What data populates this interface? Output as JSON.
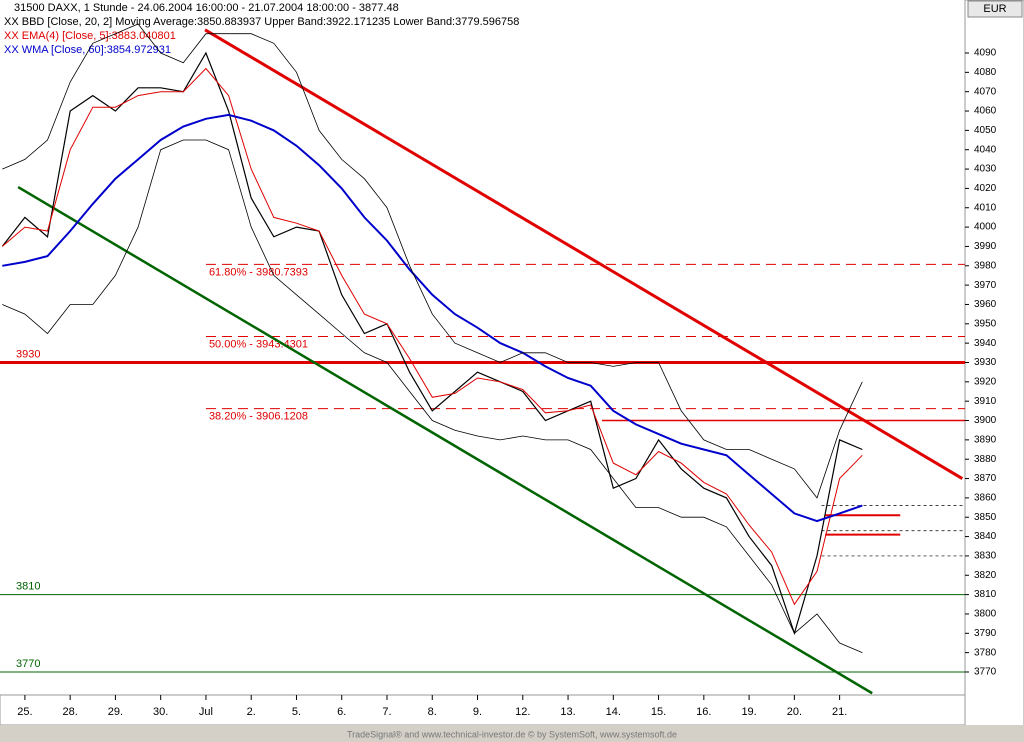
{
  "chart_data": {
    "type": "line",
    "title": "31500  DAXX, 1 Stunde - 24.06.2004 16:00:00 - 21.07.2004 18:00:00 - 3877.48",
    "legend_lines": [
      "XX BBD [Close, 20, 2] Moving Average:3850.883937 Upper Band:3922.171235 Lower Band:3779.596758",
      "XX EMA(4) [Close, 5]:3883.040801",
      "XX WMA [Close, 60]:3854.972931"
    ],
    "currency": "EUR",
    "footer": "TradeSignal® and www.technical-investor.de © by  SystemSoft, www.systemsoft.de",
    "xlim": [
      -0.55,
      20.77
    ],
    "ylim": [
      3758.1,
      4117.4
    ],
    "xticks": [
      {
        "value": 0,
        "label": "25."
      },
      {
        "value": 1,
        "label": "28."
      },
      {
        "value": 2,
        "label": "29."
      },
      {
        "value": 3,
        "label": "30."
      },
      {
        "value": 4,
        "label": "Jul"
      },
      {
        "value": 5,
        "label": "2."
      },
      {
        "value": 6,
        "label": "5."
      },
      {
        "value": 7,
        "label": "6."
      },
      {
        "value": 8,
        "label": "7."
      },
      {
        "value": 9,
        "label": "8."
      },
      {
        "value": 10,
        "label": "9."
      },
      {
        "value": 11,
        "label": "12."
      },
      {
        "value": 12,
        "label": "13."
      },
      {
        "value": 13,
        "label": "14."
      },
      {
        "value": 14,
        "label": "15."
      },
      {
        "value": 15,
        "label": "16."
      },
      {
        "value": 16,
        "label": "19."
      },
      {
        "value": 17,
        "label": "20."
      },
      {
        "value": 18,
        "label": "21."
      }
    ],
    "yticks": [
      3770,
      3780,
      3790,
      3800,
      3810,
      3820,
      3830,
      3840,
      3850,
      3860,
      3870,
      3880,
      3890,
      3900,
      3910,
      3920,
      3930,
      3940,
      3950,
      3960,
      3970,
      3980,
      3990,
      4000,
      4010,
      4020,
      4030,
      4040,
      4050,
      4060,
      4070,
      4080,
      4090
    ],
    "x": [
      -0.5,
      0,
      0.5,
      1,
      1.5,
      2,
      2.5,
      3,
      3.5,
      4,
      4.5,
      5,
      5.5,
      6,
      6.5,
      7,
      7.5,
      8,
      8.5,
      9,
      9.5,
      10,
      10.5,
      11,
      11.5,
      12,
      12.5,
      13,
      13.5,
      14,
      14.5,
      15,
      15.5,
      16,
      16.5,
      17,
      17.5,
      18,
      18.5
    ],
    "series": [
      {
        "name": "Close",
        "color": "#000000",
        "width": 1.2,
        "values": [
          3990,
          4005,
          3995,
          4060,
          4068,
          4060,
          4072,
          4072,
          4070,
          4090,
          4060,
          4015,
          3995,
          4000,
          3998,
          3965,
          3945,
          3950,
          3925,
          3905,
          3915,
          3925,
          3920,
          3915,
          3900,
          3905,
          3910,
          3865,
          3870,
          3890,
          3875,
          3865,
          3860,
          3840,
          3825,
          3790,
          3830,
          3890,
          3885
        ]
      },
      {
        "name": "EMA",
        "color": "#e00000",
        "width": 1,
        "values": [
          3990,
          4000,
          3998,
          4040,
          4062,
          4062,
          4068,
          4070,
          4070,
          4082,
          4068,
          4030,
          4005,
          4002,
          3998,
          3975,
          3955,
          3950,
          3932,
          3912,
          3914,
          3922,
          3920,
          3916,
          3904,
          3905,
          3908,
          3878,
          3872,
          3884,
          3878,
          3868,
          3862,
          3846,
          3832,
          3805,
          3822,
          3870,
          3882
        ]
      },
      {
        "name": "WMA",
        "color": "#0000cc",
        "width": 2,
        "values": [
          3980,
          3982,
          3985,
          3998,
          4012,
          4025,
          4035,
          4045,
          4052,
          4056,
          4058,
          4055,
          4050,
          4042,
          4032,
          4020,
          4005,
          3993,
          3978,
          3965,
          3955,
          3948,
          3940,
          3935,
          3928,
          3922,
          3918,
          3905,
          3898,
          3893,
          3888,
          3885,
          3882,
          3872,
          3862,
          3852,
          3848,
          3852,
          3856
        ]
      },
      {
        "name": "Upper Band",
        "color": "#000000",
        "width": 0.8,
        "values": [
          4030,
          4035,
          4045,
          4075,
          4095,
          4100,
          4105,
          4090,
          4085,
          4100,
          4100,
          4100,
          4095,
          4080,
          4050,
          4035,
          4025,
          4010,
          3980,
          3955,
          3940,
          3935,
          3930,
          3935,
          3935,
          3930,
          3930,
          3928,
          3930,
          3930,
          3905,
          3890,
          3885,
          3885,
          3880,
          3875,
          3860,
          3895,
          3920
        ]
      },
      {
        "name": "Lower Band",
        "color": "#000000",
        "width": 0.8,
        "values": [
          3960,
          3955,
          3945,
          3960,
          3960,
          3975,
          4000,
          4040,
          4045,
          4045,
          4040,
          4000,
          3975,
          3965,
          3955,
          3945,
          3935,
          3930,
          3915,
          3900,
          3895,
          3892,
          3890,
          3892,
          3890,
          3890,
          3885,
          3870,
          3855,
          3855,
          3850,
          3850,
          3845,
          3830,
          3815,
          3790,
          3800,
          3785,
          3780
        ]
      }
    ],
    "hlines": [
      {
        "value": 3930,
        "color": "#e00000",
        "width": 3
      },
      {
        "value": 3810,
        "color": "#006400",
        "width": 1
      },
      {
        "value": 3770,
        "color": "#006400",
        "width": 1
      }
    ],
    "fib_levels": [
      {
        "value": 3980.7393,
        "label": "61.80% - 3980.7393"
      },
      {
        "value": 3943.4301,
        "label": "50.00% - 3943.4301"
      },
      {
        "value": 3906.1208,
        "label": "38.20% - 3906.1208"
      }
    ],
    "fib_color": "#e00000",
    "dashed_levels": [
      3856,
      3843,
      3830
    ],
    "resistance": {
      "value": 3900,
      "x": [
        12.75,
        20.77
      ],
      "color": "#e00000"
    },
    "segments": [
      {
        "value": 3851,
        "x": [
          17.68,
          19.34
        ],
        "color": "#e00000"
      },
      {
        "value": 3841,
        "x": [
          17.68,
          19.34
        ],
        "color": "#e00000"
      }
    ],
    "trendlines": [
      {
        "x": [
          3.98,
          20.71
        ],
        "y": [
          4102,
          3870
        ],
        "color": "#e00000",
        "width": 3
      },
      {
        "x": [
          -0.15,
          18.72
        ],
        "y": [
          4020.7,
          3759
        ],
        "color": "#006400",
        "width": 2.5
      }
    ]
  }
}
